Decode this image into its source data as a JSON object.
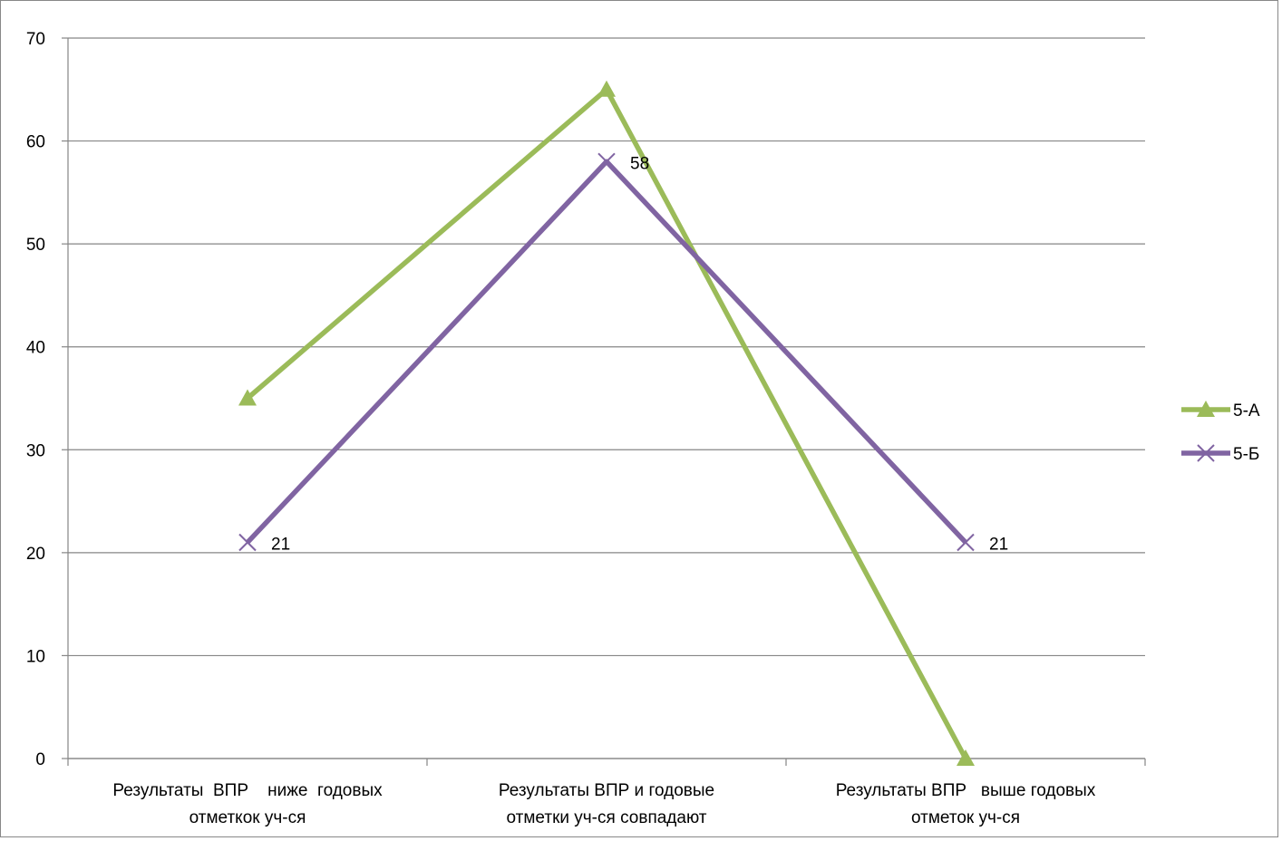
{
  "chart_data": {
    "type": "line",
    "categories": [
      [
        "Результаты  ВПР    ниже  годовых",
        "отметкок уч-ся"
      ],
      [
        "Результаты ВПР и годовые",
        "отметки уч-ся совпадают"
      ],
      [
        "Результаты ВПР   выше годовых",
        "отметок уч-ся"
      ]
    ],
    "ylim": [
      0,
      70
    ],
    "yticks": [
      0,
      10,
      20,
      30,
      40,
      50,
      60,
      70
    ],
    "grid": true,
    "legend_position": "right",
    "series": [
      {
        "name": "5-А",
        "values": [
          35,
          65,
          0
        ],
        "color": "#9bbb59",
        "marker": "triangle",
        "data_labels": []
      },
      {
        "name": "5-Б",
        "values": [
          21,
          58,
          21
        ],
        "color": "#8064a2",
        "marker": "x",
        "data_labels": [
          "21",
          "58",
          "21"
        ]
      }
    ]
  }
}
